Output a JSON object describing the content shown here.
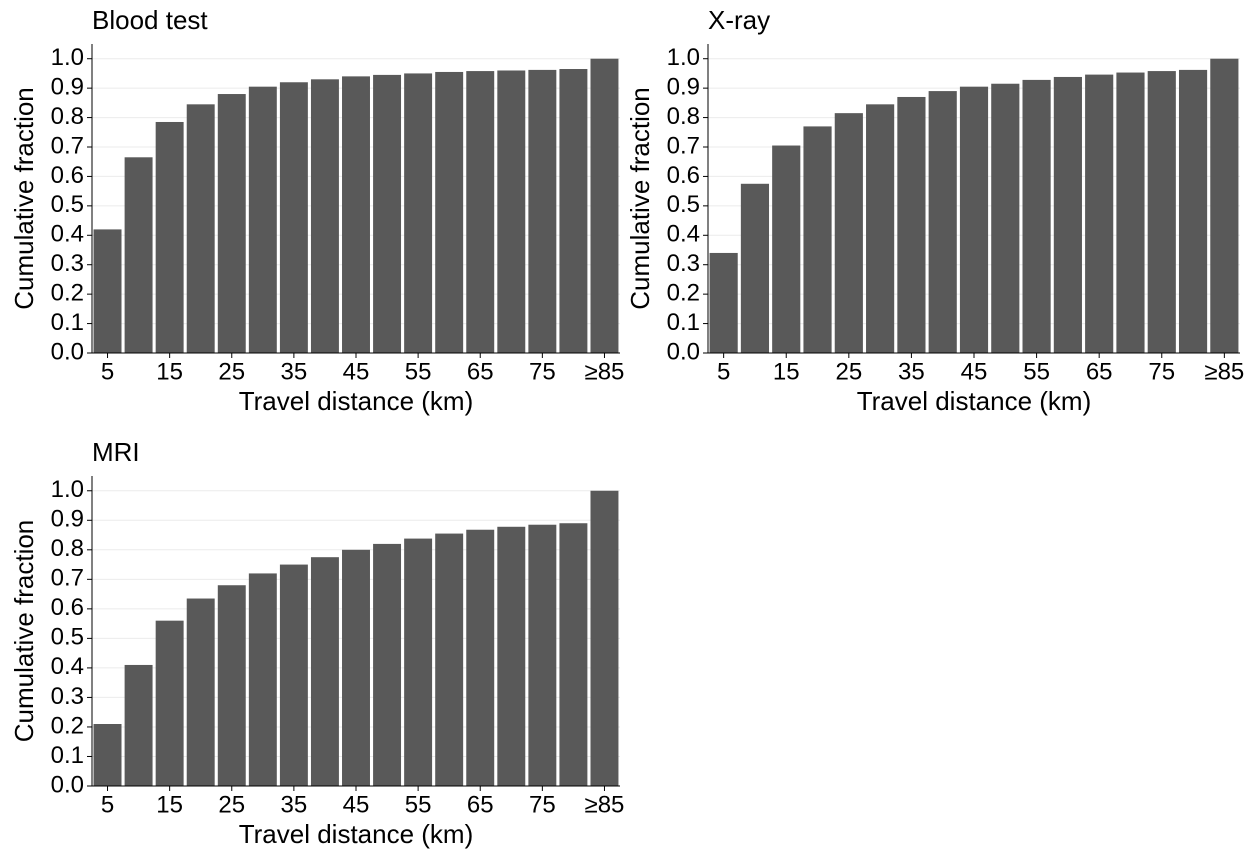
{
  "chart_data": [
    {
      "type": "bar",
      "title": "Blood test",
      "x_label": "Travel distance (km)",
      "y_label": "Cumulative fraction",
      "categories": [
        "5",
        null,
        "15",
        null,
        "25",
        null,
        "35",
        null,
        "45",
        null,
        "55",
        null,
        "65",
        null,
        "75",
        null,
        "≥85"
      ],
      "values": [
        0.42,
        0.665,
        0.785,
        0.845,
        0.88,
        0.905,
        0.92,
        0.93,
        0.94,
        0.945,
        0.95,
        0.955,
        0.958,
        0.96,
        0.962,
        0.965,
        1.0
      ],
      "color": "#595959",
      "ylim": [
        0,
        1.05
      ],
      "yticks": [
        {
          "value": 0,
          "label": "0.0"
        },
        0.1,
        0.2,
        0.3,
        0.4,
        0.5,
        0.6,
        0.7,
        0.8,
        0.9,
        {
          "value": 1,
          "label": "1.0"
        }
      ],
      "grid": true
    },
    {
      "type": "bar",
      "title": "X-ray",
      "x_label": "Travel distance (km)",
      "y_label": "Cumulative fraction",
      "categories": [
        "5",
        null,
        "15",
        null,
        "25",
        null,
        "35",
        null,
        "45",
        null,
        "55",
        null,
        "65",
        null,
        "75",
        null,
        "≥85"
      ],
      "values": [
        0.34,
        0.575,
        0.705,
        0.77,
        0.815,
        0.845,
        0.87,
        0.89,
        0.905,
        0.915,
        0.928,
        0.938,
        0.946,
        0.953,
        0.958,
        0.962,
        1.0
      ],
      "color": "#595959",
      "ylim": [
        0,
        1.05
      ],
      "yticks": [
        {
          "value": 0,
          "label": "0.0"
        },
        0.1,
        0.2,
        0.3,
        0.4,
        0.5,
        0.6,
        0.7,
        0.8,
        0.9,
        {
          "value": 1,
          "label": "1.0"
        }
      ],
      "grid": true
    },
    {
      "type": "bar",
      "title": "MRI",
      "x_label": "Travel distance (km)",
      "y_label": "Cumulative fraction",
      "categories": [
        "5",
        null,
        "15",
        null,
        "25",
        null,
        "35",
        null,
        "45",
        null,
        "55",
        null,
        "65",
        null,
        "75",
        null,
        "≥85"
      ],
      "values": [
        0.21,
        0.41,
        0.56,
        0.635,
        0.68,
        0.72,
        0.75,
        0.775,
        0.8,
        0.82,
        0.838,
        0.855,
        0.868,
        0.878,
        0.885,
        0.89,
        1.0
      ],
      "color": "#595959",
      "ylim": [
        0,
        1.05
      ],
      "yticks": [
        {
          "value": 0,
          "label": "0.0"
        },
        0.1,
        0.2,
        0.3,
        0.4,
        0.5,
        0.6,
        0.7,
        0.8,
        0.9,
        {
          "value": 1,
          "label": "1.0"
        }
      ],
      "grid": true
    }
  ]
}
